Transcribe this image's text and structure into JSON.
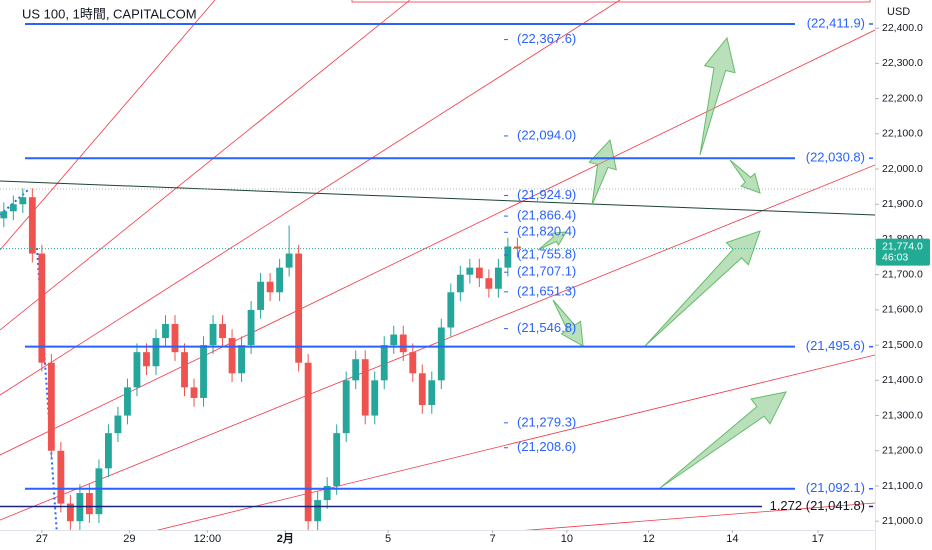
{
  "header": {
    "title": "US 100, 1時間, CAPITALCOM"
  },
  "chart_data": {
    "type": "candlestick",
    "currency": "USD",
    "up_color": "#26a69a",
    "down_color": "#ef5350",
    "x": [
      -20,
      -15,
      -10,
      -5,
      0,
      5,
      10,
      15,
      20,
      25,
      30,
      35,
      40,
      45,
      50,
      55,
      60,
      65,
      70,
      75,
      80,
      85,
      90,
      95,
      100,
      105,
      110,
      115,
      120,
      125,
      130,
      135,
      140,
      145,
      150,
      155,
      160,
      165,
      170,
      175,
      180,
      185,
      190,
      195,
      200,
      205,
      210,
      215,
      220,
      225,
      230,
      235,
      240,
      245,
      250
    ],
    "open": [
      21860,
      21880,
      21900,
      21920,
      21760,
      21450,
      21200,
      21050,
      21000,
      21080,
      21020,
      21150,
      21250,
      21300,
      21380,
      21480,
      21440,
      21520,
      21560,
      21480,
      21380,
      21350,
      21500,
      21560,
      21520,
      21420,
      21500,
      21600,
      21680,
      21650,
      21720,
      21760,
      21450,
      21000,
      21060,
      21100,
      21250,
      21400,
      21460,
      21300,
      21400,
      21500,
      21530,
      21480,
      21420,
      21330,
      21400,
      21550,
      21650,
      21700,
      21720,
      21690,
      21660,
      21720,
      21780
    ],
    "high": [
      21905,
      21925,
      21945,
      21945,
      21785,
      21475,
      21225,
      21075,
      21105,
      21105,
      21175,
      21275,
      21325,
      21405,
      21505,
      21505,
      21545,
      21585,
      21585,
      21505,
      21405,
      21525,
      21585,
      21585,
      21545,
      21525,
      21625,
      21705,
      21705,
      21745,
      21840,
      21785,
      21475,
      21085,
      21125,
      21275,
      21425,
      21485,
      21485,
      21425,
      21525,
      21555,
      21555,
      21505,
      21445,
      21425,
      21575,
      21675,
      21725,
      21745,
      21745,
      21715,
      21745,
      21805,
      21805
    ],
    "low": [
      21835,
      21855,
      21875,
      21735,
      21425,
      21175,
      21025,
      20975,
      20975,
      20995,
      20995,
      21125,
      21225,
      21275,
      21355,
      21415,
      21415,
      21495,
      21455,
      21355,
      21325,
      21325,
      21475,
      21495,
      21395,
      21395,
      21475,
      21575,
      21625,
      21625,
      21695,
      21425,
      20975,
      20975,
      21035,
      21075,
      21225,
      21375,
      21275,
      21275,
      21375,
      21475,
      21455,
      21395,
      21305,
      21305,
      21375,
      21525,
      21625,
      21675,
      21665,
      21635,
      21635,
      21695,
      21749
    ],
    "close": [
      21880,
      21900,
      21920,
      21760,
      21450,
      21200,
      21050,
      21000,
      21080,
      21020,
      21150,
      21250,
      21300,
      21380,
      21480,
      21440,
      21520,
      21560,
      21480,
      21380,
      21350,
      21500,
      21560,
      21520,
      21420,
      21500,
      21600,
      21680,
      21650,
      21720,
      21760,
      21450,
      21000,
      21060,
      21100,
      21250,
      21400,
      21460,
      21300,
      21400,
      21500,
      21530,
      21480,
      21420,
      21330,
      21400,
      21550,
      21650,
      21700,
      21720,
      21690,
      21660,
      21720,
      21780,
      21774
    ],
    "xlim": [
      -22,
      438
    ],
    "xticks": [
      {
        "value": 0,
        "label": "27"
      },
      {
        "value": 46,
        "label": "29"
      },
      {
        "value": 87,
        "label": "12:00"
      },
      {
        "value": 128,
        "label": "2月"
      },
      {
        "value": 182,
        "label": "5"
      },
      {
        "value": 237,
        "label": "7"
      },
      {
        "value": 276,
        "label": "10"
      },
      {
        "value": 319,
        "label": "12"
      },
      {
        "value": 363,
        "label": "14"
      },
      {
        "value": 408,
        "label": "17"
      }
    ],
    "ylim": [
      20975,
      22480
    ],
    "yticks": [
      {
        "value": 22400,
        "label": "22,400.0"
      },
      {
        "value": 22300,
        "label": "22,300.0"
      },
      {
        "value": 22200,
        "label": "22,200.0"
      },
      {
        "value": 22100,
        "label": "22,100.0"
      },
      {
        "value": 22000,
        "label": "22,000.0"
      },
      {
        "value": 21900,
        "label": "21,900.0"
      },
      {
        "value": 21800,
        "label": "21,800.0"
      },
      {
        "value": 21700,
        "label": "21,700.0"
      },
      {
        "value": 21600,
        "label": "21,600.0"
      },
      {
        "value": 21500,
        "label": "21,500.0"
      },
      {
        "value": 21400,
        "label": "21,400.0"
      },
      {
        "value": 21300,
        "label": "21,300.0"
      },
      {
        "value": 21200,
        "label": "21,200.0"
      },
      {
        "value": 21100,
        "label": "21,100.0"
      },
      {
        "value": 21000,
        "label": "21,000.0"
      }
    ],
    "last_price": {
      "value": 21774,
      "label": "21,774.0"
    },
    "countdown": "46:03",
    "levels": [
      {
        "value": 22411.9,
        "label": "(22,411.9)"
      },
      {
        "value": 22030.8,
        "label": "(22,030.8)"
      },
      {
        "value": 21495.6,
        "label": "(21,495.6)"
      },
      {
        "value": 21092.1,
        "label": "(21,092.1)"
      }
    ],
    "fib_level": {
      "value": 21041.8,
      "label": "1.272 (21,041.8)"
    },
    "targets": [
      {
        "value": 22367.6,
        "label": "(22,367.6)"
      },
      {
        "value": 22094.0,
        "label": "(22,094.0)"
      },
      {
        "value": 21924.9,
        "label": "(21,924.9)"
      },
      {
        "value": 21866.4,
        "label": "(21,866.4)"
      },
      {
        "value": 21820.4,
        "label": "(21,820.4)"
      },
      {
        "value": 21755.8,
        "label": "(21,755.8)"
      },
      {
        "value": 21707.1,
        "label": "(21,707.1)"
      },
      {
        "value": 21651.3,
        "label": "(21,651.3)"
      },
      {
        "value": 21546.8,
        "label": "(21,546.8)"
      },
      {
        "value": 21279.3,
        "label": "(21,279.3)"
      },
      {
        "value": 21208.6,
        "label": "(21,208.6)"
      }
    ]
  }
}
